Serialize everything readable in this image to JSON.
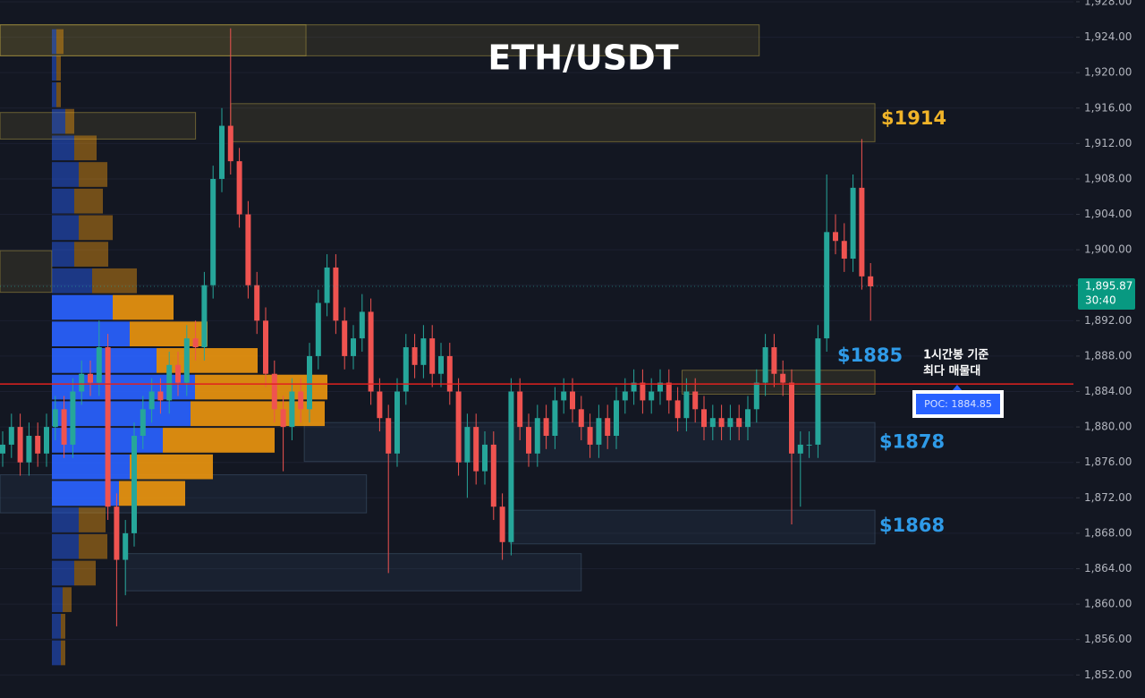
{
  "chart_data": {
    "type": "candlestick",
    "title": "ETH/USDT",
    "ylim": [
      1849.4,
      1928.2
    ],
    "yticks": [
      {
        "value": 1852,
        "label": "1,852.00"
      },
      {
        "value": 1856,
        "label": "1,856.00"
      },
      {
        "value": 1860,
        "label": "1,860.00"
      },
      {
        "value": 1864,
        "label": "1,864.00"
      },
      {
        "value": 1868,
        "label": "1,868.00"
      },
      {
        "value": 1872,
        "label": "1,872.00"
      },
      {
        "value": 1876,
        "label": "1,876.00"
      },
      {
        "value": 1880,
        "label": "1,880.00"
      },
      {
        "value": 1884,
        "label": "1,884.00"
      },
      {
        "value": 1888,
        "label": "1,888.00"
      },
      {
        "value": 1892,
        "label": "1,892.00"
      },
      {
        "value": 1896,
        "label": "1,896.00"
      },
      {
        "value": 1900,
        "label": "1,900.00"
      },
      {
        "value": 1904,
        "label": "1,904.00"
      },
      {
        "value": 1908,
        "label": "1,908.00"
      },
      {
        "value": 1912,
        "label": "1,912.00"
      },
      {
        "value": 1916,
        "label": "1,916.00"
      },
      {
        "value": 1920,
        "label": "1,920.00"
      },
      {
        "value": 1924,
        "label": "1,924.00"
      },
      {
        "value": 1928,
        "label": "1,928.00"
      }
    ],
    "grid": true,
    "up_color": "#26a69a",
    "down_color": "#ef5350",
    "open": [
      1877,
      1878,
      1880,
      1876,
      1879,
      1877,
      1880,
      1882,
      1878,
      1884,
      1886,
      1885,
      1889,
      1871,
      1865,
      1868,
      1879,
      1882,
      1884,
      1883,
      1887,
      1885,
      1890,
      1889,
      1896,
      1908,
      1914,
      1910,
      1904,
      1896,
      1892,
      1886,
      1882,
      1880,
      1884,
      1882,
      1888,
      1894,
      1898,
      1892,
      1888,
      1890,
      1893,
      1884,
      1881,
      1877,
      1884,
      1889,
      1887,
      1890,
      1886,
      1888,
      1884,
      1876,
      1880,
      1875,
      1878,
      1871,
      1867,
      1884,
      1880,
      1877,
      1881,
      1879,
      1883,
      1884,
      1882,
      1880,
      1878,
      1881,
      1879,
      1883,
      1884,
      1885,
      1883,
      1884,
      1885,
      1883,
      1881,
      1884,
      1882,
      1880,
      1881,
      1880,
      1881,
      1880,
      1882,
      1885,
      1889,
      1886,
      1885,
      1877,
      1878,
      1878,
      1890,
      1902,
      1901,
      1899,
      1907,
      1897
    ],
    "high": [
      1879.5,
      1881.5,
      1881.5,
      1880.5,
      1880.5,
      1881.5,
      1883.5,
      1883.5,
      1885.5,
      1887.5,
      1887.5,
      1892,
      1890.5,
      1872.5,
      1869.5,
      1880.5,
      1883.5,
      1885.5,
      1885.5,
      1888.5,
      1888.5,
      1891.5,
      1892,
      1897.5,
      1909.5,
      1916,
      1925,
      1911.5,
      1905.5,
      1897.5,
      1893.5,
      1887.5,
      1883.5,
      1885.5,
      1885.5,
      1889.5,
      1895.5,
      1899.5,
      1899.5,
      1893.5,
      1891.5,
      1895,
      1894.5,
      1885.5,
      1882.5,
      1885.5,
      1890.5,
      1890.5,
      1891.5,
      1891.5,
      1889.5,
      1889.5,
      1885.5,
      1881.5,
      1881.5,
      1879.5,
      1879.5,
      1872.5,
      1885.5,
      1885.5,
      1881.5,
      1882.5,
      1882.5,
      1884.5,
      1885.5,
      1885.5,
      1883.5,
      1881.5,
      1882.5,
      1882.5,
      1884.5,
      1885.5,
      1886.5,
      1886.5,
      1885.5,
      1886.5,
      1886.5,
      1884.5,
      1885.5,
      1885.5,
      1883.5,
      1882.5,
      1882.5,
      1882.5,
      1882.5,
      1883.5,
      1886.5,
      1890.5,
      1890.5,
      1887.5,
      1886.5,
      1879.5,
      1879.5,
      1891.5,
      1908.5,
      1904,
      1903,
      1908.5,
      1912.5,
      1898.5
    ],
    "low": [
      1875.5,
      1876.5,
      1874.5,
      1874.5,
      1875.5,
      1875.5,
      1878.5,
      1876.5,
      1876.5,
      1882.5,
      1883.5,
      1883.5,
      1869.5,
      1857.5,
      1861,
      1866.5,
      1877.5,
      1880.5,
      1881.5,
      1881.5,
      1883.5,
      1883.5,
      1887.5,
      1887.5,
      1894.5,
      1906.5,
      1908.5,
      1902.5,
      1894.5,
      1890.5,
      1884.5,
      1880.5,
      1875,
      1878.5,
      1880.5,
      1880.5,
      1886.5,
      1892.5,
      1890.5,
      1886.5,
      1886.5,
      1888.5,
      1882.5,
      1879.5,
      1863.5,
      1875.5,
      1882.5,
      1885.5,
      1885.5,
      1884.5,
      1884.5,
      1882.5,
      1874.5,
      1872,
      1873.5,
      1873.5,
      1869.5,
      1865,
      1865.5,
      1878.5,
      1875.5,
      1875.5,
      1877.5,
      1877.5,
      1881.5,
      1880.5,
      1878.5,
      1876.5,
      1876.5,
      1877.5,
      1877.5,
      1881.5,
      1882.5,
      1881.5,
      1881.5,
      1882.5,
      1881.5,
      1879.5,
      1879.5,
      1880.5,
      1878.5,
      1878.5,
      1878.5,
      1878.5,
      1878.5,
      1878.5,
      1880.5,
      1883.5,
      1884.5,
      1883.5,
      1869,
      1871,
      1876.5,
      1876.5,
      1888.5,
      1899.5,
      1897.5,
      1897.5,
      1895.5,
      1892
    ],
    "close": [
      1878,
      1880,
      1876,
      1879,
      1877,
      1880,
      1882,
      1878,
      1884,
      1886,
      1885,
      1889,
      1871,
      1865,
      1868,
      1879,
      1882,
      1884,
      1883,
      1887,
      1885,
      1890,
      1889,
      1896,
      1908,
      1914,
      1910,
      1904,
      1896,
      1892,
      1886,
      1882,
      1880,
      1884,
      1882,
      1888,
      1894,
      1898,
      1892,
      1888,
      1890,
      1893,
      1884,
      1881,
      1877,
      1884,
      1889,
      1887,
      1890,
      1886,
      1888,
      1884,
      1876,
      1880,
      1875,
      1878,
      1871,
      1867,
      1884,
      1880,
      1877,
      1881,
      1879,
      1883,
      1884,
      1882,
      1880,
      1878,
      1881,
      1879,
      1883,
      1884,
      1885,
      1883,
      1884,
      1885,
      1883,
      1881,
      1884,
      1882,
      1880,
      1881,
      1880,
      1881,
      1880,
      1882,
      1885,
      1889,
      1886,
      1885,
      1877,
      1878,
      1878,
      1890,
      1902,
      1901,
      1899,
      1907,
      1897,
      1895.87
    ],
    "volume_profile": {
      "bins": [
        1853,
        1856,
        1859,
        1862,
        1865,
        1868,
        1871,
        1874,
        1877,
        1880,
        1883,
        1886,
        1889,
        1892,
        1895,
        1898,
        1901,
        1904,
        1907,
        1910,
        1913,
        1916,
        1919,
        1922,
        1925
      ],
      "buy": [
        10,
        10,
        12,
        25,
        30,
        30,
        75,
        87,
        124,
        155,
        160,
        117,
        87,
        68,
        45,
        25,
        30,
        25,
        30,
        25,
        15,
        5,
        5,
        5
      ],
      "sell": [
        5,
        5,
        10,
        24,
        32,
        30,
        74,
        93,
        125,
        150,
        148,
        113,
        87,
        68,
        50,
        38,
        38,
        32,
        32,
        25,
        10,
        5,
        5,
        8
      ],
      "buy_color": "#2962ff",
      "sell_color": "#e8940f"
    },
    "zones": [
      {
        "from": -0.3,
        "to": 34.6,
        "top": 1925.4,
        "bottom": 1921.9,
        "color": "yellow"
      },
      {
        "from": -0.3,
        "to": 86.3,
        "top": 1925.4,
        "bottom": 1921.9,
        "color": "yellow"
      },
      {
        "from": -0.3,
        "to": 22,
        "top": 1915.5,
        "bottom": 1912.5,
        "color": "yellow"
      },
      {
        "from": 26,
        "to": 99.5,
        "top": 1916.5,
        "bottom": 1912.2,
        "color": "yellow"
      },
      {
        "from": -0.3,
        "to": 5.6,
        "top": 1899.9,
        "bottom": 1895.2,
        "color": "yellow"
      },
      {
        "from": 77.5,
        "to": 99.5,
        "top": 1886.4,
        "bottom": 1883.7,
        "color": "yellow"
      },
      {
        "from": 34.4,
        "to": 99.5,
        "top": 1880.5,
        "bottom": 1876.1,
        "color": "blue"
      },
      {
        "from": -0.3,
        "to": 41.5,
        "top": 1874.6,
        "bottom": 1870.3,
        "color": "blue"
      },
      {
        "from": 57.9,
        "to": 99.5,
        "top": 1870.6,
        "bottom": 1866.8,
        "color": "blue"
      },
      {
        "from": 14,
        "to": 66,
        "top": 1865.7,
        "bottom": 1861.5,
        "color": "blue"
      }
    ],
    "annotations": [
      "$1914",
      "$1885",
      "$1878",
      "$1868"
    ],
    "note": [
      "1시간봉 기준",
      "최다 매물대"
    ],
    "poc": 1884.85,
    "poc_label": "POC: 1884.85",
    "last_price": {
      "value": 1895.87,
      "label": "1,895.87"
    },
    "countdown": "30:40"
  }
}
